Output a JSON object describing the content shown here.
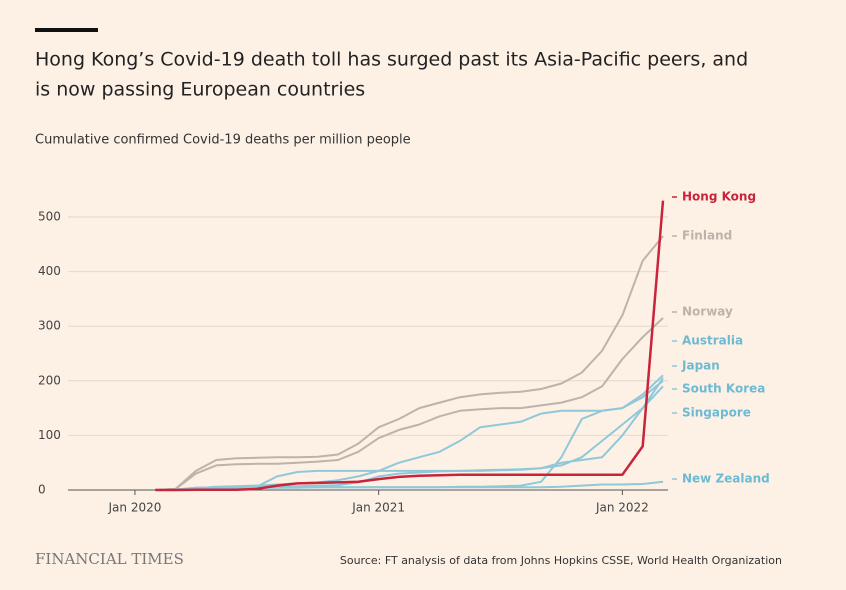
{
  "chart_data": {
    "type": "line",
    "title": "Hong Kong’s Covid-19 death toll has surged past its Asia-Pacific peers, and",
    "title_line2": "is now passing European countries",
    "subtitle": "Cumulative confirmed Covid-19 deaths per million people",
    "x": [
      "2020-02",
      "2020-03",
      "2020-04",
      "2020-05",
      "2020-06",
      "2020-07",
      "2020-08",
      "2020-09",
      "2020-10",
      "2020-11",
      "2020-12",
      "2021-01",
      "2021-02",
      "2021-03",
      "2021-04",
      "2021-05",
      "2021-06",
      "2021-07",
      "2021-08",
      "2021-09",
      "2021-10",
      "2021-11",
      "2021-12",
      "2022-01",
      "2022-02",
      "2022-03"
    ],
    "xlim": [
      "2019-10",
      "2022-03"
    ],
    "xticks": [
      {
        "value": "2020-01",
        "label": "Jan 2020"
      },
      {
        "value": "2021-01",
        "label": "Jan 2021"
      },
      {
        "value": "2022-01",
        "label": "Jan 2022"
      }
    ],
    "ylim": [
      0,
      500
    ],
    "yticks": [
      0,
      100,
      200,
      300,
      400,
      500
    ],
    "grid": true,
    "series": [
      {
        "name": "Finland",
        "color": "#bcb3ab",
        "values": [
          0,
          2,
          35,
          55,
          58,
          59,
          60,
          60,
          61,
          65,
          85,
          115,
          130,
          150,
          160,
          170,
          175,
          178,
          180,
          185,
          195,
          215,
          255,
          320,
          420,
          465
        ]
      },
      {
        "name": "Norway",
        "color": "#bcb3ab",
        "values": [
          0,
          2,
          30,
          45,
          47,
          48,
          48,
          50,
          52,
          55,
          70,
          95,
          110,
          120,
          135,
          145,
          148,
          150,
          150,
          155,
          160,
          170,
          190,
          240,
          280,
          315
        ]
      },
      {
        "name": "Australia",
        "color": "#8fc8d9",
        "values": [
          0,
          0.5,
          2,
          4,
          4,
          6,
          25,
          33,
          35,
          35,
          35,
          35,
          35,
          35,
          35,
          35,
          35,
          36,
          37,
          40,
          50,
          55,
          60,
          100,
          150,
          205
        ]
      },
      {
        "name": "Japan",
        "color": "#8fc8d9",
        "values": [
          0,
          0.5,
          3,
          6,
          7,
          8,
          10,
          12,
          14,
          18,
          25,
          35,
          50,
          60,
          70,
          90,
          115,
          120,
          125,
          140,
          145,
          145,
          145,
          150,
          175,
          210
        ]
      },
      {
        "name": "South Korea",
        "color": "#8fc8d9",
        "values": [
          0,
          1,
          4,
          5,
          5,
          5,
          6,
          7,
          8,
          9,
          14,
          25,
          30,
          32,
          34,
          35,
          36,
          37,
          38,
          40,
          45,
          60,
          90,
          120,
          150,
          190
        ]
      },
      {
        "name": "Singapore",
        "color": "#8fc8d9",
        "values": [
          0,
          0,
          0.5,
          1,
          2,
          4,
          4,
          4,
          5,
          5,
          5,
          5,
          5,
          5,
          5,
          6,
          6,
          7,
          8,
          15,
          60,
          130,
          145,
          150,
          170,
          200
        ]
      },
      {
        "name": "New Zealand",
        "color": "#8fc8d9",
        "values": [
          0,
          0.5,
          4,
          4,
          5,
          5,
          5,
          5,
          5,
          5,
          5,
          5,
          5,
          5,
          5,
          5,
          5,
          5,
          5,
          5,
          6,
          8,
          10,
          10,
          11,
          15
        ]
      },
      {
        "name": "Hong Kong",
        "color": "#c8243a",
        "values": [
          0,
          0,
          0.5,
          0.5,
          0.5,
          2,
          8,
          12,
          13,
          14,
          15,
          20,
          24,
          26,
          27,
          28,
          28,
          28,
          28,
          28,
          28,
          28,
          28,
          28,
          80,
          530
        ]
      }
    ],
    "brand": "FINANCIAL TIMES",
    "source": "Source: FT analysis of data from Johns Hopkins CSSE, World Health Organization"
  }
}
